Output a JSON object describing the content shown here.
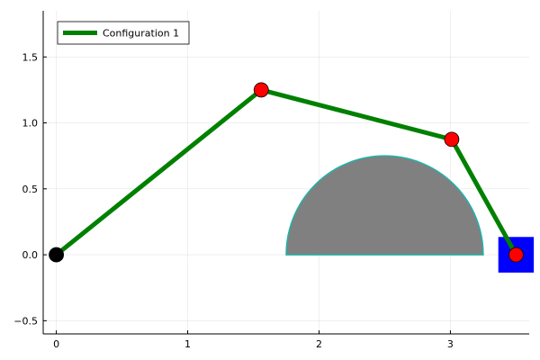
{
  "chart_data": {
    "type": "line",
    "xlim": [
      -0.1,
      3.6
    ],
    "ylim": [
      -0.6,
      1.85
    ],
    "xticks": [
      0,
      1,
      2,
      3
    ],
    "yticks": [
      -0.5,
      0.0,
      0.5,
      1.0,
      1.5
    ],
    "xtick_labels": [
      "0",
      "1",
      "2",
      "3"
    ],
    "ytick_labels": [
      "−0.5",
      "0.0",
      "0.5",
      "1.0",
      "1.5"
    ],
    "grid": true,
    "legend": {
      "position": "top-left",
      "entries": [
        "Configuration 1"
      ]
    },
    "series": [
      {
        "name": "Configuration 1",
        "color": "#008000",
        "points": [
          {
            "x": 0.0,
            "y": 0.0
          },
          {
            "x": 1.56,
            "y": 1.25
          },
          {
            "x": 3.01,
            "y": 0.875
          },
          {
            "x": 3.5,
            "y": 0.0
          }
        ]
      }
    ],
    "joint_colors": {
      "base": "#000000",
      "joint": "#ff0000"
    },
    "obstacle": {
      "shape": "semicircle",
      "center": [
        2.5,
        0.0
      ],
      "radius": 0.75,
      "fill": "#808080",
      "stroke": "#20b2aa"
    },
    "target": {
      "shape": "square",
      "center": [
        3.5,
        0.0
      ],
      "half_size": 0.135,
      "fill": "#0000ff"
    }
  }
}
